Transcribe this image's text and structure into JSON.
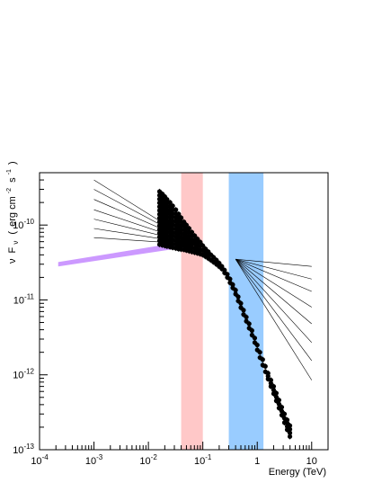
{
  "chart_data": {
    "type": "scatter",
    "title": "",
    "xlabel": "Energy (TeV)",
    "ylabel_parts": {
      "nu": "ν",
      "f": "F",
      "nu_sub": "ν",
      "lparen": "(",
      "erg": "erg cm",
      "exp_cm": "-2",
      "s": "s",
      "exp_s": "-1",
      "rparen": ")"
    },
    "x_scale": "log",
    "y_scale": "log",
    "xlim": [
      0.0001,
      20
    ],
    "ylim": [
      1e-13,
      5e-10
    ],
    "x_ticks": [
      {
        "value": 0.0001,
        "base": "10",
        "exp": "-4"
      },
      {
        "value": 0.001,
        "base": "10",
        "exp": "-3"
      },
      {
        "value": 0.01,
        "base": "10",
        "exp": "-2"
      },
      {
        "value": 0.1,
        "base": "10",
        "exp": "-1"
      },
      {
        "value": 1,
        "label": "1"
      },
      {
        "value": 10,
        "label": "10"
      }
    ],
    "y_ticks": [
      {
        "value": 1e-13,
        "base": "10",
        "exp": "-13"
      },
      {
        "value": 1e-12,
        "base": "10",
        "exp": "-12"
      },
      {
        "value": 1e-11,
        "base": "10",
        "exp": "-11"
      },
      {
        "value": 1e-10,
        "base": "10",
        "exp": "-10"
      }
    ],
    "bands": [
      {
        "x_range": [
          0.04,
          0.1
        ],
        "color": "#ffc8c8"
      },
      {
        "x_range": [
          0.3,
          1.3
        ],
        "color": "#99ccff"
      }
    ],
    "purple_band": {
      "color": "#cc99ff",
      "lower": [
        [
          0.00022,
          2.8e-11
        ],
        [
          0.045,
          5e-11
        ]
      ],
      "upper": [
        [
          0.00022,
          3.2e-11
        ],
        [
          0.045,
          6e-11
        ]
      ]
    },
    "low_fan": {
      "pivot": [
        0.08,
        5.5e-11
      ],
      "left_x": 0.001,
      "left_y": [
        4e-10,
        3e-10,
        2.2e-10,
        1.6e-10,
        1.2e-10,
        9e-11,
        6.8e-11
      ]
    },
    "high_fan": {
      "pivot": [
        0.4,
        3.5e-11
      ],
      "right_x": 10,
      "right_y": [
        2.8e-11,
        1.9e-11,
        1.3e-11,
        8e-12,
        4.8e-12,
        2.7e-12,
        1.55e-12,
        8.5e-13
      ]
    },
    "series": [
      {
        "x": [
          0.016,
          0.018,
          0.02,
          0.022,
          0.025,
          0.028,
          0.032,
          0.036,
          0.04,
          0.045,
          0.05,
          0.056,
          0.063,
          0.071,
          0.08,
          0.09,
          0.1,
          0.112,
          0.126,
          0.141,
          0.158,
          0.178,
          0.2,
          0.224,
          0.251,
          0.282,
          0.316,
          0.355,
          0.4,
          0.447,
          0.5,
          0.56,
          0.63,
          0.71,
          0.8,
          0.9,
          1.0,
          1.12,
          1.26,
          1.41,
          1.58,
          1.78,
          2.0,
          2.24,
          2.51,
          2.82,
          3.16,
          3.55,
          3.98
        ],
        "y_top": [
          2.8e-10,
          2.6e-10,
          2.4e-10,
          2.2e-10,
          2e-10,
          1.8e-10,
          1.6e-10,
          1.4e-10,
          1.25e-10,
          1.1e-10,
          1e-10,
          9e-11,
          8e-11,
          7.2e-11,
          6.5e-11,
          5.9e-11,
          5.3e-11,
          4.8e-11,
          4.4e-11,
          4e-11,
          3.7e-11,
          3.4e-11,
          3.1e-11,
          2.8e-11,
          2.5e-11,
          2.2e-11,
          1.9e-11,
          1.6e-11,
          1.35e-11,
          1.1e-11,
          9e-12,
          7.3e-12,
          5.9e-12,
          4.8e-12,
          3.9e-12,
          3.1e-12,
          2.5e-12,
          2e-12,
          1.6e-12,
          1.3e-12,
          1.05e-12,
          8.5e-13,
          7e-13,
          5.7e-13,
          4.6e-13,
          3.7e-13,
          3e-13,
          2.5e-13,
          2.1e-13
        ],
        "y_bottom": [
          5.5e-11,
          5.4e-11,
          5.3e-11,
          5.2e-11,
          5.1e-11,
          5e-11,
          4.9e-11,
          4.8e-11,
          4.75e-11,
          4.7e-11,
          4.6e-11,
          4.5e-11,
          4.4e-11,
          4.3e-11,
          4.2e-11,
          4.1e-11,
          4e-11,
          3.8e-11,
          3.6e-11,
          3.4e-11,
          3.2e-11,
          3e-11,
          2.8e-11,
          2.6e-11,
          2.3e-11,
          2e-11,
          1.7e-11,
          1.45e-11,
          1.2e-11,
          9.7e-12,
          7.9e-12,
          6.4e-12,
          5.2e-12,
          4.2e-12,
          3.4e-12,
          2.7e-12,
          2.15e-12,
          1.7e-12,
          1.35e-12,
          1.1e-12,
          8.8e-13,
          7e-13,
          5.6e-13,
          4.5e-13,
          3.6e-13,
          2.9e-13,
          2.3e-13,
          1.85e-13,
          1.5e-13
        ]
      }
    ]
  }
}
